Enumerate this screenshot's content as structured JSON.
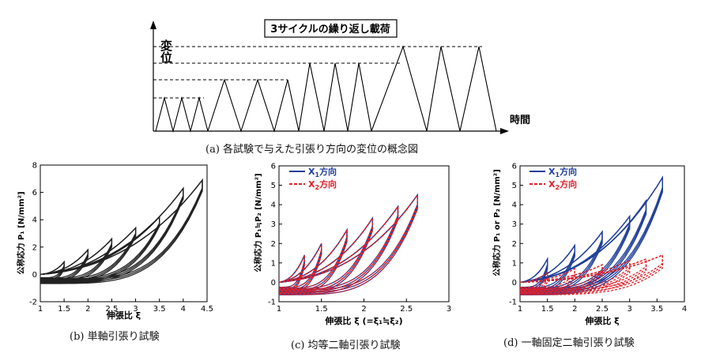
{
  "figure_a": {
    "y_label": "変位",
    "x_label": "時間",
    "box_label": "3サイクルの繰り返し載荷",
    "caption": "(a) 各試験で与えた引張り方向の変位の概念図"
  },
  "captions": {
    "b": "(b) 単軸引張り試験",
    "c": "(c) 均等二軸引張り試験",
    "d": "(d) 一軸固定二軸引張り試験"
  },
  "chart_data": [
    {
      "id": "b",
      "type": "line",
      "xlabel": "伸張比 ξ",
      "ylabel": "公称応力 P₁ [N/mm²]",
      "xlim": [
        1,
        4.5
      ],
      "ylim": [
        -2,
        8
      ],
      "xticks": [
        "1",
        "1.5",
        "2",
        "2.5",
        "3",
        "3.5",
        "4",
        "4.5"
      ],
      "yticks": [
        "-2",
        "0",
        "2",
        "4",
        "6",
        "8"
      ],
      "line_color": "#222222",
      "legend": [],
      "loops": [
        {
          "x_peak": 1.5,
          "y_peak": 0.9
        },
        {
          "x_peak": 2.0,
          "y_peak": 1.8
        },
        {
          "x_peak": 2.5,
          "y_peak": 2.6
        },
        {
          "x_peak": 3.0,
          "y_peak": 3.4
        },
        {
          "x_peak": 3.5,
          "y_peak": 4.2
        },
        {
          "x_peak": 4.0,
          "y_peak": 6.3
        },
        {
          "x_peak": 4.4,
          "y_peak": 6.9
        }
      ]
    },
    {
      "id": "c",
      "type": "line",
      "xlabel": "伸張比 ξ (=ξ₁≒ξ₂)",
      "ylabel": "公称応力 P₁≒P₂ [N/mm²]",
      "xlim": [
        1,
        3
      ],
      "ylim": [
        -1,
        6
      ],
      "xticks": [
        "1",
        "1.5",
        "2",
        "2.5",
        "3"
      ],
      "yticks": [
        "-1",
        "0",
        "1",
        "2",
        "3",
        "4",
        "5",
        "6"
      ],
      "legend": [
        {
          "sym": "X",
          "sub": "1",
          "rest": "方向",
          "color": "#1f3f9a"
        },
        {
          "sym": "X",
          "sub": "2",
          "rest": "方向",
          "color": "#e0202a"
        }
      ],
      "series": [
        {
          "name": "X₁方向",
          "color": "#1f3f9a",
          "loops": [
            {
              "x_peak": 1.3,
              "y_peak": 1.4
            },
            {
              "x_peak": 1.5,
              "y_peak": 2.0
            },
            {
              "x_peak": 1.8,
              "y_peak": 2.7
            },
            {
              "x_peak": 2.1,
              "y_peak": 3.3
            },
            {
              "x_peak": 2.4,
              "y_peak": 3.9
            },
            {
              "x_peak": 2.63,
              "y_peak": 4.5
            }
          ]
        },
        {
          "name": "X₂方向",
          "color": "#e0202a",
          "loops": [
            {
              "x_peak": 1.3,
              "y_peak": 1.4
            },
            {
              "x_peak": 1.5,
              "y_peak": 2.0
            },
            {
              "x_peak": 1.8,
              "y_peak": 2.7
            },
            {
              "x_peak": 2.1,
              "y_peak": 3.3
            },
            {
              "x_peak": 2.4,
              "y_peak": 3.9
            },
            {
              "x_peak": 2.63,
              "y_peak": 4.5
            }
          ]
        }
      ]
    },
    {
      "id": "d",
      "type": "line",
      "xlabel": "伸張比 ξ",
      "ylabel": "公称応力 P₁ or P₂ [N/mm²]",
      "xlim": [
        1,
        4
      ],
      "ylim": [
        -1,
        6
      ],
      "xticks": [
        "1",
        "1.5",
        "2",
        "2.5",
        "3",
        "3.5",
        "4"
      ],
      "yticks": [
        "-1",
        "0",
        "1",
        "2",
        "3",
        "4",
        "5",
        "6"
      ],
      "legend": [
        {
          "sym": "X",
          "sub": "1",
          "rest": "方向",
          "color": "#1f3f9a"
        },
        {
          "sym": "X",
          "sub": "2",
          "rest": "方向",
          "color": "#e0202a"
        }
      ],
      "series": [
        {
          "name": "X₁方向",
          "color": "#1f3f9a",
          "loops": [
            {
              "x_peak": 1.5,
              "y_peak": 1.2
            },
            {
              "x_peak": 2.0,
              "y_peak": 1.9
            },
            {
              "x_peak": 2.5,
              "y_peak": 2.6
            },
            {
              "x_peak": 3.0,
              "y_peak": 3.4
            },
            {
              "x_peak": 3.3,
              "y_peak": 4.2
            },
            {
              "x_peak": 3.6,
              "y_peak": 5.4
            }
          ]
        },
        {
          "name": "X₂方向",
          "color": "#e0202a",
          "loops": [
            {
              "x_peak": 1.5,
              "y_peak": 0.5
            },
            {
              "x_peak": 2.0,
              "y_peak": 0.7
            },
            {
              "x_peak": 2.5,
              "y_peak": 0.9
            },
            {
              "x_peak": 3.0,
              "y_peak": 1.1
            },
            {
              "x_peak": 3.3,
              "y_peak": 1.2
            },
            {
              "x_peak": 3.6,
              "y_peak": 1.4
            }
          ]
        }
      ]
    }
  ]
}
